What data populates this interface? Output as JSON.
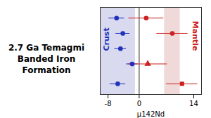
{
  "chart_data": {
    "type": "scatter",
    "title": "2.7 Ga Temagmi\nBanded Iron\nFormation",
    "xlabel": "μ142Nd",
    "xlim": [
      -10,
      16
    ],
    "xticks": [
      -8,
      0,
      14
    ],
    "ylim": [
      0.5,
      6.2
    ],
    "tick_labels": "x",
    "grid": false,
    "series": [
      {
        "color": "#2233bb",
        "marker": "circle",
        "x": [
          -5.8,
          -4.2,
          -4.8,
          -1.8,
          -5.5
        ],
        "y": [
          5.5,
          4.5,
          3.5,
          2.5,
          1.2
        ],
        "xerr": [
          2.0,
          1.8,
          1.5,
          1.5,
          2.0
        ]
      },
      {
        "color": "#cc2222",
        "marker": [
          "circle",
          "circle",
          "triangle",
          "square"
        ],
        "x": [
          1.8,
          8.5,
          2.2,
          11.0
        ],
        "y": [
          5.5,
          4.5,
          2.5,
          1.2
        ],
        "xerr": [
          4.5,
          4.0,
          5.0,
          4.0
        ]
      }
    ],
    "bands": [
      {
        "x1": -10,
        "x2": -1.0,
        "color": "#aaaadd"
      },
      {
        "x1": 6.5,
        "x2": 10.5,
        "color": "#ddaaaa"
      }
    ],
    "vline": {
      "x": 0,
      "color": "#222222"
    },
    "annotations": [
      {
        "text": "Crust",
        "color": "#2233bb",
        "side": "left"
      },
      {
        "text": "Mantle",
        "color": "#cc2222",
        "side": "right"
      }
    ]
  }
}
